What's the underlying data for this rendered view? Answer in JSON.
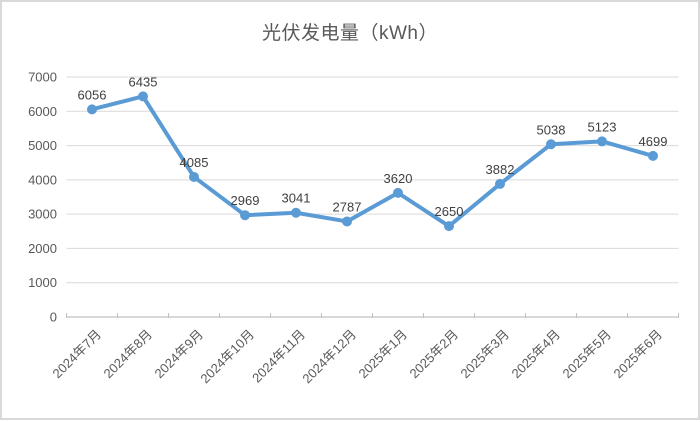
{
  "chart_data": {
    "type": "line",
    "title": "光伏发电量（kWh）",
    "categories": [
      "2024年7月",
      "2024年8月",
      "2024年9月",
      "2024年10月",
      "2024年11月",
      "2024年12月",
      "2025年1月",
      "2025年2月",
      "2025年3月",
      "2025年4月",
      "2025年5月",
      "2025年6月"
    ],
    "values": [
      6056,
      6435,
      4085,
      2969,
      3041,
      2787,
      3620,
      2650,
      3882,
      5038,
      5123,
      4699
    ],
    "data_labels": [
      6056,
      6435,
      4085,
      2969,
      3041,
      2787,
      3620,
      2650,
      3882,
      5038,
      5123,
      4699
    ],
    "xlabel": "",
    "ylabel": "",
    "ylim": [
      0,
      7000
    ],
    "y_ticks": [
      0,
      1000,
      2000,
      3000,
      4000,
      5000,
      6000,
      7000
    ],
    "grid": true,
    "legend": "none",
    "x_label_rotation": -45,
    "marker": "circle",
    "colors": {
      "line": "#5b9bd5",
      "marker": "#5b9bd5",
      "gridline": "#d9d9d9",
      "axis": "#c0c0c0",
      "tick_text": "#595959",
      "data_label_text": "#404040",
      "title_text": "#595959",
      "frame_border": "#d9d9d9",
      "background": "#ffffff"
    }
  }
}
